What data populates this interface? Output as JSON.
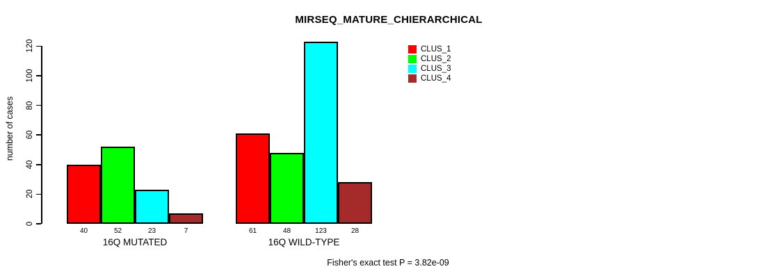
{
  "chart_data": {
    "type": "bar",
    "title": "MIRSEQ_MATURE_CHIERARCHICAL",
    "ylabel": "number of cases",
    "xlabel": "",
    "groups": [
      "16Q MUTATED",
      "16Q WILD-TYPE"
    ],
    "series": [
      {
        "name": "CLUS_1",
        "color": "#ff0000",
        "values": [
          40,
          61
        ]
      },
      {
        "name": "CLUS_2",
        "color": "#00ff00",
        "values": [
          52,
          48
        ]
      },
      {
        "name": "CLUS_3",
        "color": "#00ffff",
        "values": [
          23,
          123
        ]
      },
      {
        "name": "CLUS_4",
        "color": "#a52a2a",
        "values": [
          7,
          28
        ]
      }
    ],
    "yticks": [
      0,
      20,
      40,
      60,
      80,
      100,
      120
    ],
    "ylim": [
      0,
      120
    ],
    "grid": false,
    "bar_value_labels": true,
    "legend_position": "top-right",
    "annotation": "Fisher's exact test P = 3.82e-09"
  }
}
